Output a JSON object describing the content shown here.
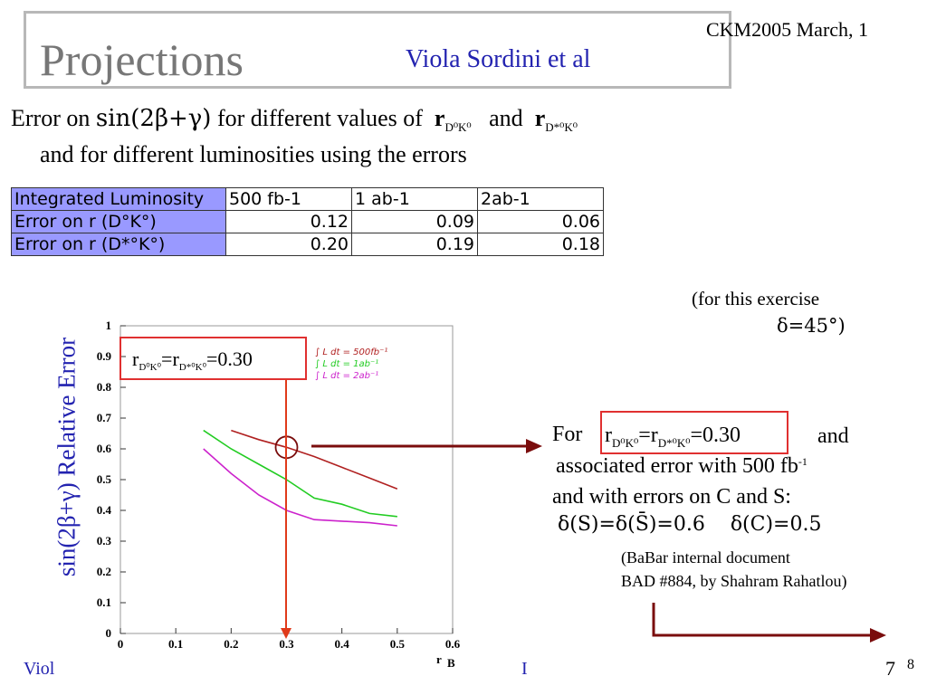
{
  "slide": {
    "title": "Projections",
    "author": "Viola Sordini et al",
    "conference": "CKM2005    March, 1",
    "page_number": "7",
    "page_superscript": "8",
    "footer_left": "Viol",
    "footer_mid": "I"
  },
  "description": {
    "prefix": "Error on",
    "formula": "sin(2β+γ)",
    "middle": "for different values of",
    "r1": "r",
    "r1_sub": "D⁰K⁰",
    "and": "and",
    "r2": "r",
    "r2_sub": "D*⁰K⁰",
    "line2": "and for different luminosities using the errors"
  },
  "table": {
    "header": [
      "Integrated Luminosity",
      "500 fb-1",
      "1 ab-1",
      "2ab-1"
    ],
    "rows": [
      {
        "label": "Error on r (D°K°)",
        "values": [
          "0.12",
          "0.09",
          "0.06"
        ]
      },
      {
        "label": "Error on r (D*°K°)",
        "values": [
          "0.20",
          "0.19",
          "0.18"
        ]
      }
    ]
  },
  "exercise_note": {
    "line1": "(for this exercise",
    "line2": "δ=45°)"
  },
  "annotation": {
    "for": "For",
    "box_formula": "r",
    "box_sub1": "D⁰K⁰",
    "box_mid": "=r",
    "box_sub2": "D*⁰K⁰",
    "box_val": "=0.30",
    "and": "and",
    "assoc": "associated error with  500 fb",
    "assoc_sup": "-1",
    "with_errors": "and with errors on C and S:",
    "delta_s": "δ(S)=δ(S̄)=0.6",
    "delta_c": "δ(C)=0.5",
    "ref1": "(BaBar  internal document",
    "ref2": "BAD #884, by Shahram Rahatlou)"
  },
  "chart_data": {
    "type": "line",
    "ylabel": "sin(2β+γ) Relative Error",
    "xlabel": "r",
    "xlabel_sub": "B",
    "xlim": [
      0,
      0.6
    ],
    "ylim": [
      0,
      1
    ],
    "x_ticks": [
      "0",
      "0.1",
      "0.2",
      "0.3",
      "0.4",
      "0.5",
      "0.6"
    ],
    "y_ticks": [
      "0",
      "0.1",
      "0.2",
      "0.3",
      "0.4",
      "0.5",
      "0.6",
      "0.7",
      "0.8",
      "0.9",
      "1"
    ],
    "annotation_box": {
      "text": "=0.30",
      "prefix": "r",
      "sub1": "D⁰K⁰",
      "mid": "=r",
      "sub2": "D*⁰K⁰"
    },
    "legend_position": "top-right",
    "marker": {
      "x": 0.3,
      "y": 0.605
    },
    "series": [
      {
        "name": "∫ L dt = 500fb⁻¹",
        "color": "#b02020",
        "x": [
          0.2,
          0.25,
          0.3,
          0.35,
          0.4,
          0.45,
          0.5
        ],
        "y": [
          0.66,
          0.63,
          0.605,
          0.575,
          0.54,
          0.505,
          0.47
        ]
      },
      {
        "name": "∫ L dt = 1ab⁻¹",
        "color": "#22cc22",
        "x": [
          0.15,
          0.2,
          0.25,
          0.3,
          0.35,
          0.4,
          0.45,
          0.5
        ],
        "y": [
          0.66,
          0.6,
          0.55,
          0.5,
          0.44,
          0.42,
          0.39,
          0.38
        ]
      },
      {
        "name": "∫ L dt = 2ab⁻¹",
        "color": "#cc22cc",
        "x": [
          0.15,
          0.2,
          0.25,
          0.3,
          0.35,
          0.4,
          0.45,
          0.5
        ],
        "y": [
          0.6,
          0.52,
          0.45,
          0.4,
          0.37,
          0.365,
          0.36,
          0.35
        ]
      }
    ]
  }
}
